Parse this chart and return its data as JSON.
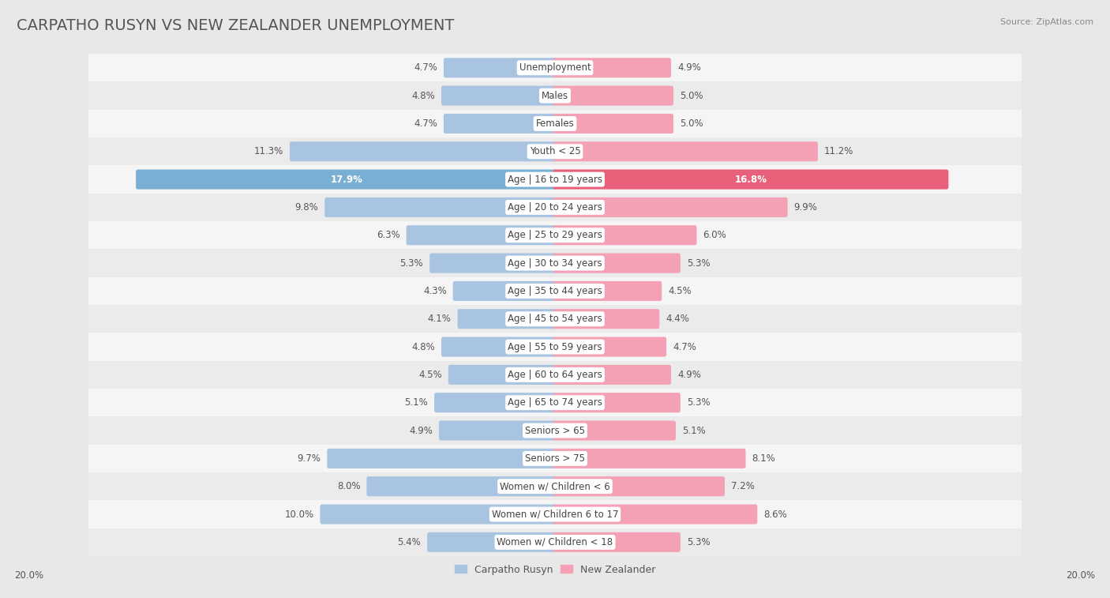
{
  "title": "CARPATHO RUSYN VS NEW ZEALANDER UNEMPLOYMENT",
  "source": "Source: ZipAtlas.com",
  "categories": [
    "Unemployment",
    "Males",
    "Females",
    "Youth < 25",
    "Age | 16 to 19 years",
    "Age | 20 to 24 years",
    "Age | 25 to 29 years",
    "Age | 30 to 34 years",
    "Age | 35 to 44 years",
    "Age | 45 to 54 years",
    "Age | 55 to 59 years",
    "Age | 60 to 64 years",
    "Age | 65 to 74 years",
    "Seniors > 65",
    "Seniors > 75",
    "Women w/ Children < 6",
    "Women w/ Children 6 to 17",
    "Women w/ Children < 18"
  ],
  "left_values": [
    4.7,
    4.8,
    4.7,
    11.3,
    17.9,
    9.8,
    6.3,
    5.3,
    4.3,
    4.1,
    4.8,
    4.5,
    5.1,
    4.9,
    9.7,
    8.0,
    10.0,
    5.4
  ],
  "right_values": [
    4.9,
    5.0,
    5.0,
    11.2,
    16.8,
    9.9,
    6.0,
    5.3,
    4.5,
    4.4,
    4.7,
    4.9,
    5.3,
    5.1,
    8.1,
    7.2,
    8.6,
    5.3
  ],
  "left_color": "#a8c4e0",
  "right_color": "#f4a0b5",
  "left_label": "Carpatho Rusyn",
  "right_label": "New Zealander",
  "highlight_left_color": "#7aafd4",
  "highlight_right_color": "#e8607a",
  "highlight_row": 4,
  "max_value": 20.0,
  "bg_color": "#e8e8e8",
  "row_bg_even": "#f5f5f5",
  "row_bg_odd": "#ebebeb",
  "bar_height": 0.55,
  "title_fontsize": 14,
  "value_fontsize": 8.5,
  "category_fontsize": 8.5
}
